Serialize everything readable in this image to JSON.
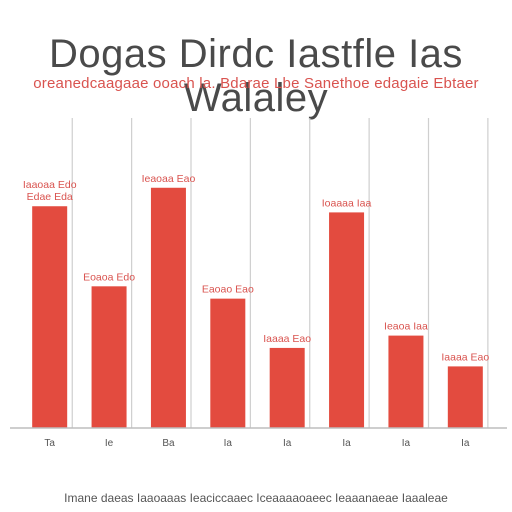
{
  "colors": {
    "bar": "#e34b3f",
    "grid": "#cfcfcf",
    "title": "#4a4a4a",
    "accent": "#d9534f"
  },
  "chart_data": {
    "type": "bar",
    "title": "Dogas Dirdc Iastfle Ias Walaley",
    "subtitle": "oreanedcaagaae ooach la. Bdarae Lbe Sanethoe edagaie Ebtaer",
    "footer": "Imane daeas Iaaoaaas Ieaciccaaec Iceaaaaoaeec Ieaaanaeae Iaaaleae",
    "xlabel": "",
    "ylabel": "",
    "categories": [
      "Ta",
      "Ie",
      "Ba",
      "Ia",
      "Ia",
      "Ia",
      "Ia",
      "Ia"
    ],
    "values": [
      72,
      46,
      78,
      42,
      26,
      70,
      30,
      20
    ],
    "bar_labels": [
      "Iaaoaa Edo Edae Eda",
      "Eoaoa Edo",
      "Ieaoaa Eao",
      "Eaoao Eao",
      "Iaaaa Eao",
      "Ioaaaa Iaa",
      "Ieaoa Iaa",
      "Iaaaa Eao"
    ],
    "ylim": [
      0,
      100
    ],
    "grid": true,
    "legend": "none"
  }
}
